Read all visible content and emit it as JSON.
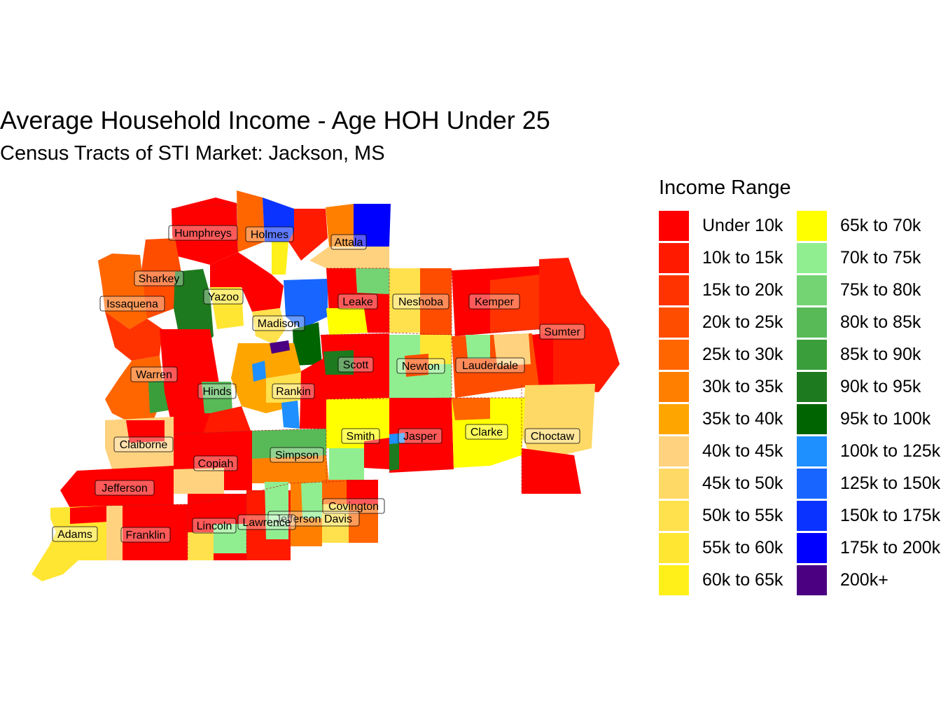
{
  "title": "Average Household Income - Age HOH Under 25",
  "subtitle": "Census Tracts of STI Market: Jackson, MS",
  "legend": {
    "title": "Income Range",
    "items": [
      {
        "label": "Under 10k",
        "color": "#FF0000"
      },
      {
        "label": "10k to 15k",
        "color": "#FF1A00"
      },
      {
        "label": "15k to 20k",
        "color": "#FF3300"
      },
      {
        "label": "20k to 25k",
        "color": "#FF4D00"
      },
      {
        "label": "25k to 30k",
        "color": "#FF6600"
      },
      {
        "label": "30k to 35k",
        "color": "#FF8000"
      },
      {
        "label": "35k to 40k",
        "color": "#FFA500"
      },
      {
        "label": "40k to 45k",
        "color": "#FFD27F"
      },
      {
        "label": "45k to 50k",
        "color": "#FFD966"
      },
      {
        "label": "50k to 55k",
        "color": "#FFE14D"
      },
      {
        "label": "55k to 60k",
        "color": "#FFE633"
      },
      {
        "label": "60k to 65k",
        "color": "#FFF01A"
      },
      {
        "label": "65k to 70k",
        "color": "#FFFF00"
      },
      {
        "label": "70k to 75k",
        "color": "#90EE90"
      },
      {
        "label": "75k to 80k",
        "color": "#74D474"
      },
      {
        "label": "80k to 85k",
        "color": "#57BA57"
      },
      {
        "label": "85k to 90k",
        "color": "#3A9F3A"
      },
      {
        "label": "90k to 95k",
        "color": "#1E7A1E"
      },
      {
        "label": "95k to 100k",
        "color": "#006400"
      },
      {
        "label": "100k to 125k",
        "color": "#1E90FF"
      },
      {
        "label": "125k to 150k",
        "color": "#1866FF"
      },
      {
        "label": "150k to 175k",
        "color": "#0A33FF"
      },
      {
        "label": "175k to 200k",
        "color": "#0000FF"
      },
      {
        "label": "200k+",
        "color": "#4B0082"
      }
    ]
  },
  "counties": [
    {
      "name": "Humphreys"
    },
    {
      "name": "Holmes"
    },
    {
      "name": "Attala"
    },
    {
      "name": "Sharkey"
    },
    {
      "name": "Issaquena"
    },
    {
      "name": "Yazoo"
    },
    {
      "name": "Leake"
    },
    {
      "name": "Neshoba"
    },
    {
      "name": "Kemper"
    },
    {
      "name": "Madison"
    },
    {
      "name": "Sumter"
    },
    {
      "name": "Scott"
    },
    {
      "name": "Newton"
    },
    {
      "name": "Lauderdale"
    },
    {
      "name": "Warren"
    },
    {
      "name": "Hinds"
    },
    {
      "name": "Rankin"
    },
    {
      "name": "Smith"
    },
    {
      "name": "Jasper"
    },
    {
      "name": "Clarke"
    },
    {
      "name": "Choctaw"
    },
    {
      "name": "Claiborne"
    },
    {
      "name": "Copiah"
    },
    {
      "name": "Simpson"
    },
    {
      "name": "Jefferson"
    },
    {
      "name": "Covington"
    },
    {
      "name": "Jefferson Davis"
    },
    {
      "name": "Lawrence"
    },
    {
      "name": "Lincoln"
    },
    {
      "name": "Adams"
    },
    {
      "name": "Franklin"
    }
  ]
}
